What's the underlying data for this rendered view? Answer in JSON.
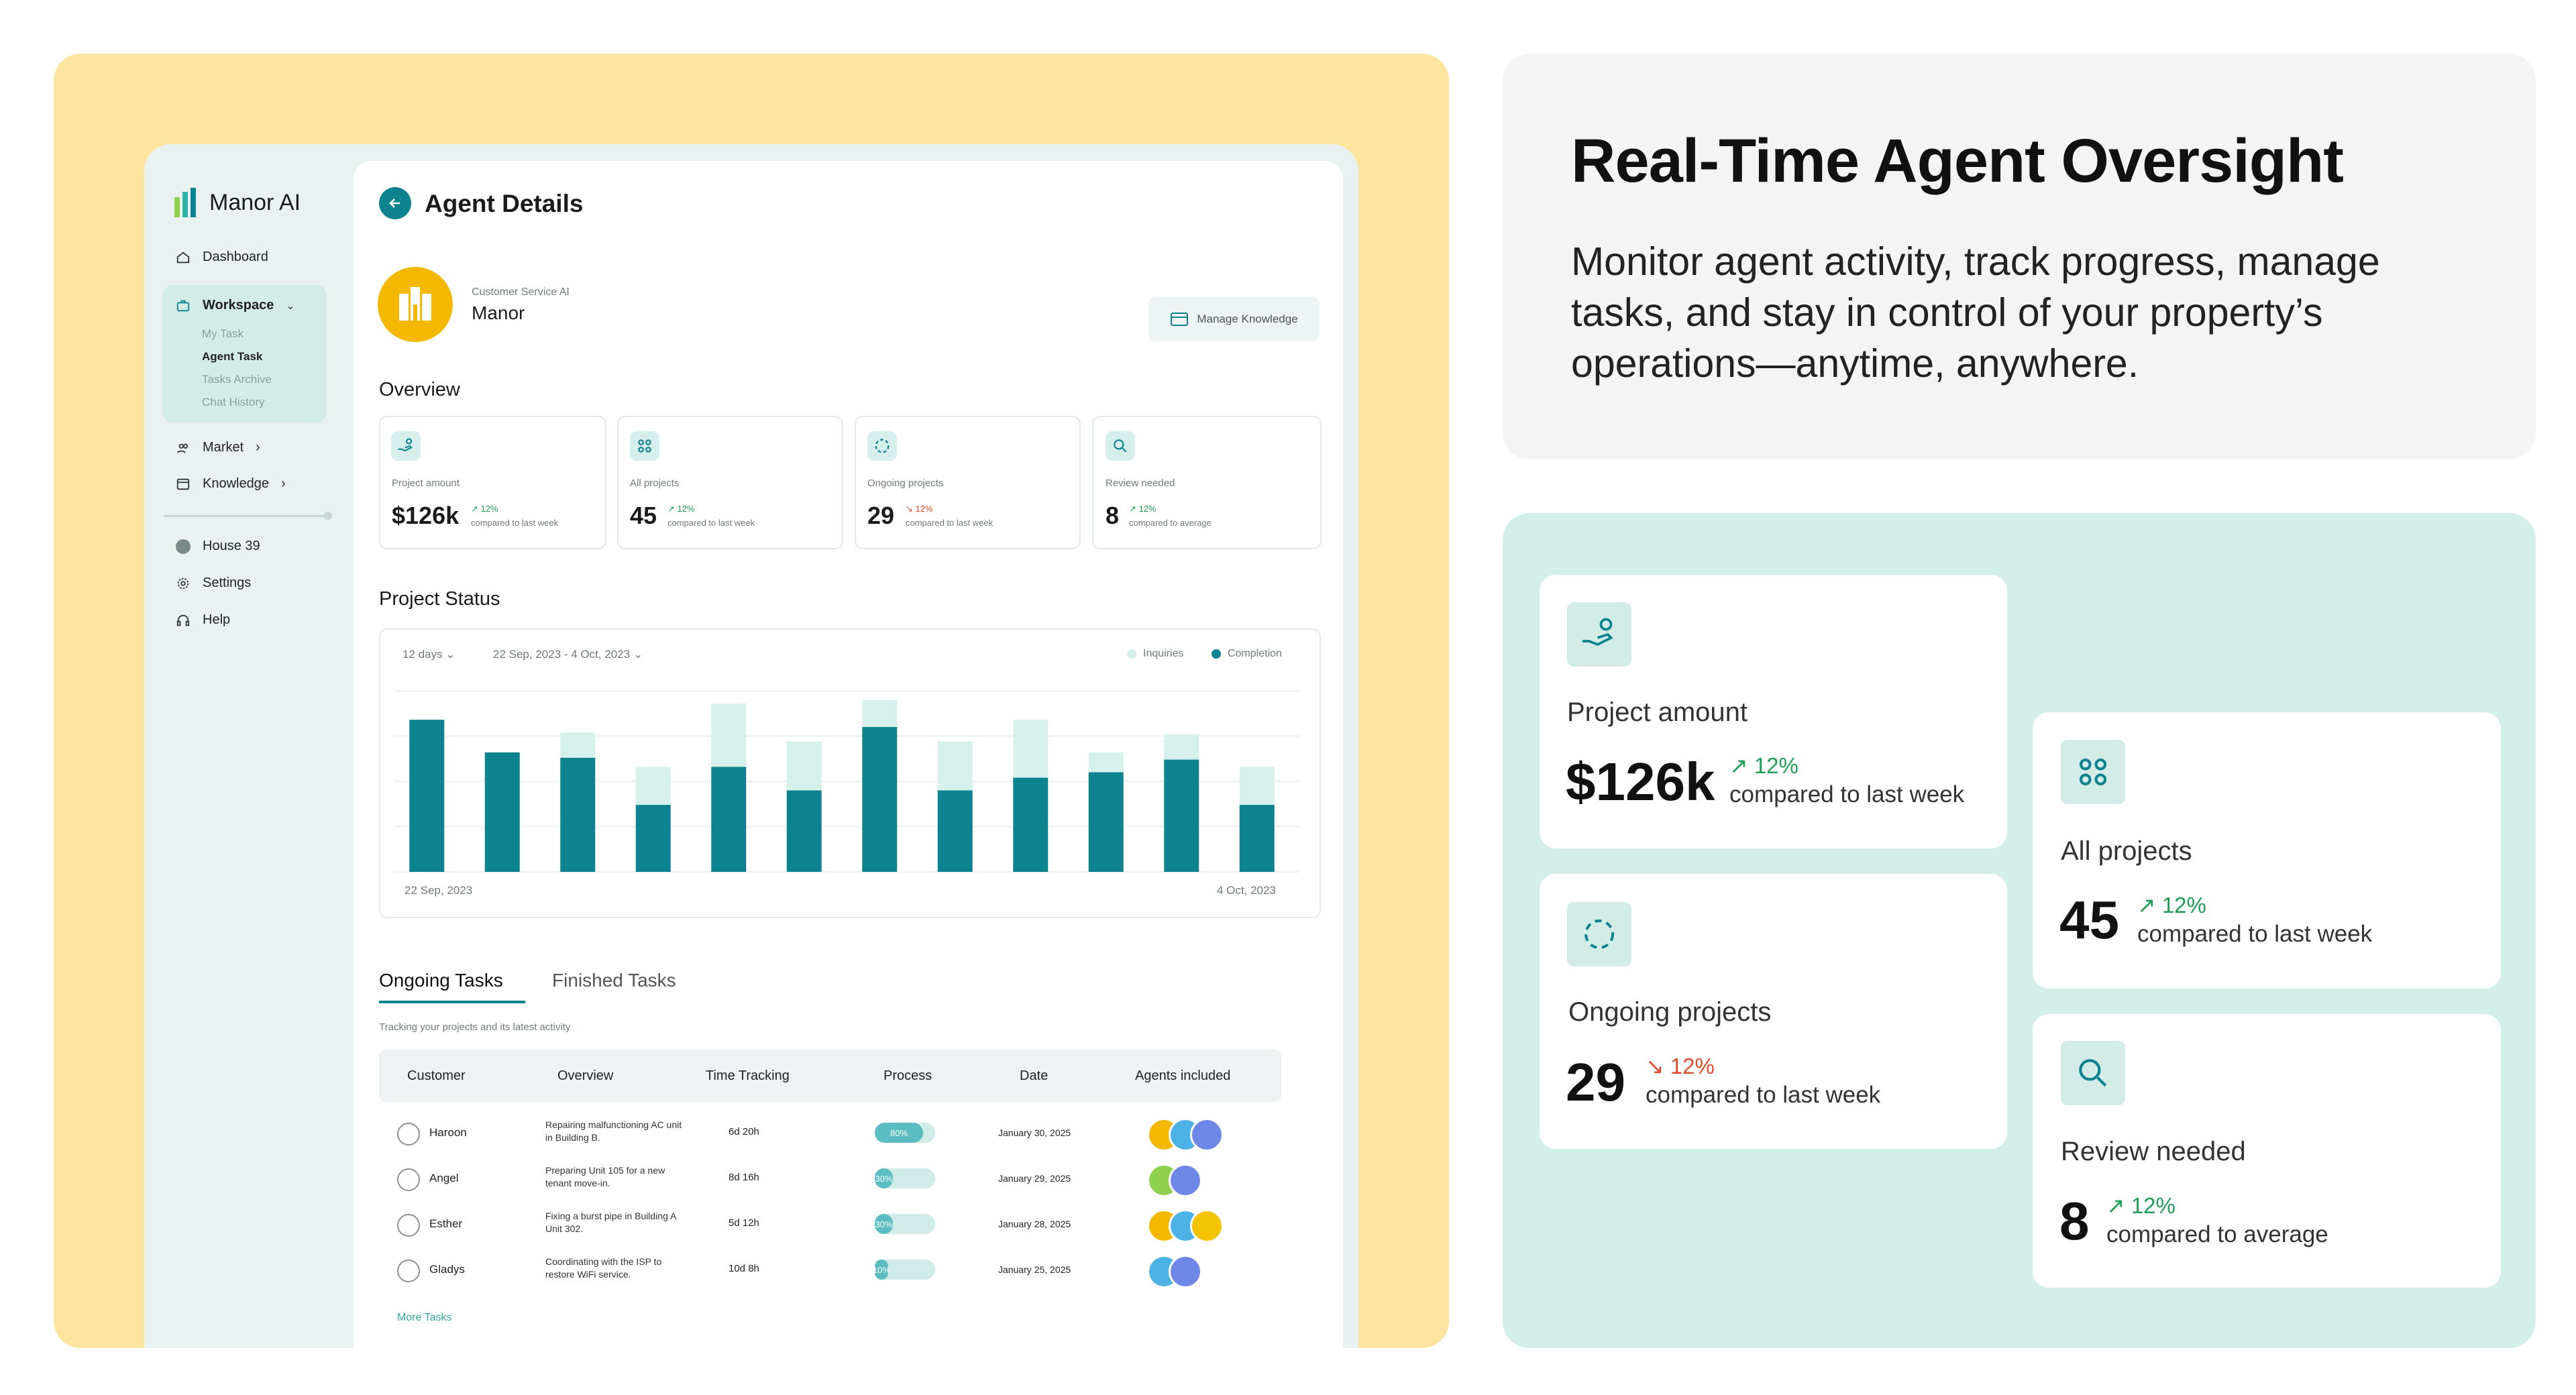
{
  "app": {
    "brand": "Manor AI",
    "page_title": "Agent Details"
  },
  "sidebar": {
    "dashboard": "Dashboard",
    "workspace": "Workspace",
    "workspace_items": [
      "My Task",
      "Agent Task",
      "Tasks Archive",
      "Chat History"
    ],
    "market": "Market",
    "knowledge": "Knowledge",
    "house": "House 39",
    "settings": "Settings",
    "help": "Help"
  },
  "agent": {
    "role": "Customer Service AI",
    "name": "Manor",
    "manage_label": "Manage Knowledge"
  },
  "overview": {
    "title": "Overview",
    "cards": [
      {
        "label": "Project amount",
        "value": "$126k",
        "pct": "12%",
        "trend": "up",
        "compare": "compared to last week"
      },
      {
        "label": "All projects",
        "value": "45",
        "pct": "12%",
        "trend": "up",
        "compare": "compared to last week"
      },
      {
        "label": "Ongoing projects",
        "value": "29",
        "pct": "12%",
        "trend": "down",
        "compare": "compared to last week"
      },
      {
        "label": "Review needed",
        "value": "8",
        "pct": "12%",
        "trend": "up",
        "compare": "compared to average"
      }
    ]
  },
  "project_status": {
    "title": "Project Status",
    "range_select": "12 days",
    "date_select": "22 Sep, 2023 - 4 Oct, 2023",
    "legend": [
      "Inquiries",
      "Completion"
    ],
    "x_start": "22 Sep, 2023",
    "x_end": "4 Oct, 2023"
  },
  "chart_data": {
    "type": "bar",
    "stacked": true,
    "x_start_label": "22 Sep, 2023",
    "x_end_label": "4 Oct, 2023",
    "ylim": [
      0,
      100
    ],
    "grid": true,
    "legend_position": "top-right",
    "series": [
      {
        "name": "Completion",
        "color": "#0e8390",
        "values": [
          84,
          66,
          63,
          37,
          58,
          45,
          80,
          45,
          52,
          55,
          62,
          37
        ]
      },
      {
        "name": "Inquiries",
        "color": "#d6f0ec",
        "values": [
          0,
          0,
          14,
          21,
          35,
          27,
          15,
          27,
          32,
          11,
          14,
          21
        ]
      }
    ]
  },
  "tasks": {
    "tab_ongoing": "Ongoing Tasks",
    "tab_finished": "Finished Tasks",
    "subtitle": "Tracking your projects and its latest activity",
    "headers": [
      "Customer",
      "Overview",
      "Time Tracking",
      "Process",
      "Date",
      "Agents included"
    ],
    "rows": [
      {
        "customer": "Haroon",
        "overview": "Repairing malfunctioning AC unit in Building B.",
        "time": "6d 20h",
        "process": "80%",
        "progress": 0.8,
        "date": "January 30, 2025",
        "agents": [
          "#f5b800",
          "#4db3e6",
          "#6f88e8"
        ]
      },
      {
        "customer": "Angel",
        "overview": "Preparing Unit 105 for a new tenant move-in.",
        "time": "8d 16h",
        "process": "30%",
        "progress": 0.3,
        "date": "January 29, 2025",
        "agents": [
          "#8fd14f",
          "#6f88e8"
        ]
      },
      {
        "customer": "Esther",
        "overview": "Fixing a burst pipe in Building A Unit 302.",
        "time": "5d 12h",
        "process": "30%",
        "progress": 0.3,
        "date": "January 28, 2025",
        "agents": [
          "#f5b800",
          "#4db3e6",
          "#f5c400"
        ]
      },
      {
        "customer": "Gladys",
        "overview": "Coordinating with the ISP to restore WiFi service.",
        "time": "10d 8h",
        "process": "10%",
        "progress": 0.1,
        "date": "January 25, 2025",
        "agents": [
          "#4db3e6",
          "#6f88e8"
        ]
      }
    ],
    "more": "More Tasks"
  },
  "hero": {
    "title": "Real-Time Agent Oversight",
    "body": "Monitor agent activity, track progress, manage tasks, and stay in control of your property’s operations—anytime, anywhere."
  },
  "colors": {
    "accent": "#0e8390",
    "accent_light": "#d6f0ec",
    "yellow_bg": "#fde5a0",
    "mint_bg": "#d4efea",
    "up": "#1f9d55",
    "down": "#e24b2b"
  },
  "icons": [
    "logo-icon",
    "home-icon",
    "briefcase-icon",
    "market-icon",
    "knowledge-icon",
    "settings-icon",
    "help-icon",
    "back-arrow-icon",
    "hand-coin-icon",
    "grid-icon",
    "dashed-circle-icon",
    "search-icon",
    "book-icon"
  ]
}
